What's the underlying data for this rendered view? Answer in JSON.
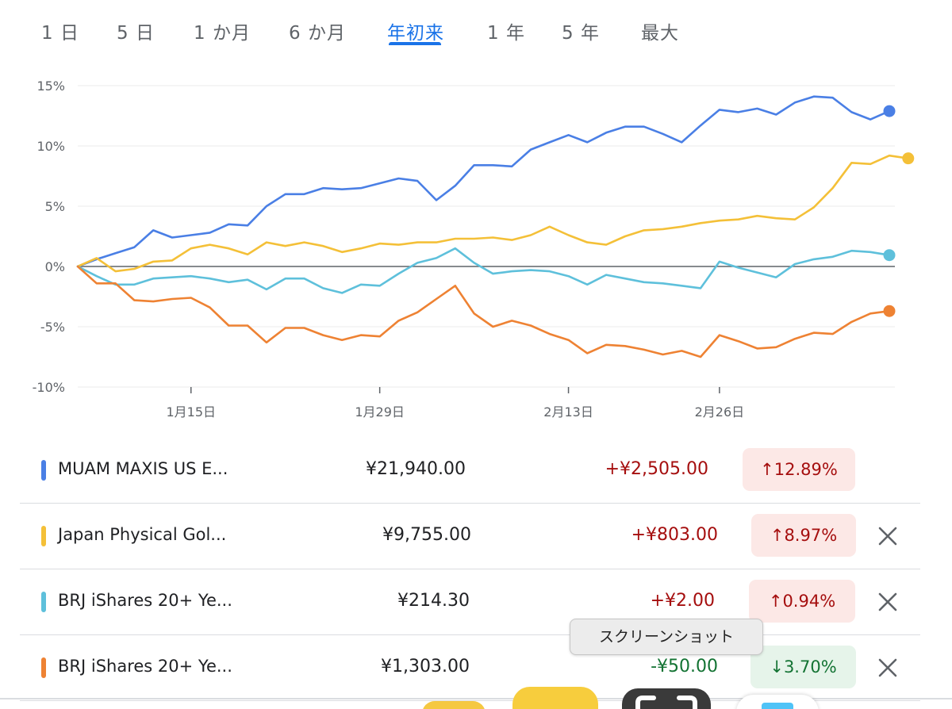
{
  "tabs": [
    {
      "label": "1 日",
      "active": false
    },
    {
      "label": "5 日",
      "active": false
    },
    {
      "label": "1 か月",
      "active": false
    },
    {
      "label": "6 か月",
      "active": false
    },
    {
      "label": "年初来",
      "active": true
    },
    {
      "label": "1 年",
      "active": false
    },
    {
      "label": "5 年",
      "active": false
    },
    {
      "label": "最大",
      "active": false
    }
  ],
  "chart_data": {
    "type": "line",
    "y_ticks": [
      "15%",
      "10%",
      "5%",
      "0%",
      "-5%",
      "-10%"
    ],
    "ylim": [
      -10,
      15
    ],
    "x_ticks": [
      {
        "label": "1月15日",
        "index": 6
      },
      {
        "label": "1月29日",
        "index": 16
      },
      {
        "label": "2月13日",
        "index": 26
      },
      {
        "label": "2月26日",
        "index": 34
      }
    ],
    "grid": true,
    "series": [
      {
        "name": "MUAM MAXIS US E...",
        "color": "#4a7fe5",
        "values": [
          0,
          0.6,
          1.1,
          1.6,
          3.0,
          2.4,
          2.6,
          2.8,
          3.5,
          3.4,
          5.0,
          6.0,
          6.0,
          6.5,
          6.4,
          6.5,
          6.9,
          7.3,
          7.1,
          5.5,
          6.7,
          8.4,
          8.4,
          8.3,
          9.7,
          10.3,
          10.9,
          10.3,
          11.1,
          11.6,
          11.6,
          11.0,
          10.3,
          11.7,
          13.0,
          12.8,
          13.1,
          12.6,
          13.6,
          14.1,
          14.0,
          12.8,
          12.2,
          12.89
        ]
      },
      {
        "name": "Japan Physical Gol...",
        "color": "#f4c038",
        "values": [
          0,
          0.7,
          -0.4,
          -0.2,
          0.4,
          0.5,
          1.5,
          1.8,
          1.5,
          1.0,
          2.0,
          1.7,
          2.0,
          1.7,
          1.2,
          1.5,
          1.9,
          1.8,
          2.0,
          2.0,
          2.3,
          2.3,
          2.4,
          2.2,
          2.6,
          3.3,
          2.6,
          2.0,
          1.8,
          2.5,
          3.0,
          3.1,
          3.3,
          3.6,
          3.8,
          3.9,
          4.2,
          4.0,
          3.9,
          4.9,
          6.5,
          8.6,
          8.5,
          9.2,
          8.97
        ]
      },
      {
        "name": "BRJ iShares 20+ Ye...",
        "color": "#5ec0db",
        "values": [
          0,
          -0.8,
          -1.5,
          -1.5,
          -1.0,
          -0.9,
          -0.8,
          -1.0,
          -1.3,
          -1.1,
          -1.9,
          -1.0,
          -1.0,
          -1.8,
          -2.2,
          -1.5,
          -1.6,
          -0.6,
          0.3,
          0.7,
          1.5,
          0.3,
          -0.6,
          -0.4,
          -0.3,
          -0.4,
          -0.8,
          -1.5,
          -0.7,
          -1.0,
          -1.3,
          -1.4,
          -1.6,
          -1.8,
          0.4,
          -0.1,
          -0.5,
          -0.9,
          0.2,
          0.6,
          0.8,
          1.3,
          1.2,
          0.94
        ]
      },
      {
        "name": "BRJ iShares 20+ Ye...",
        "color": "#ee8233",
        "values": [
          0,
          -1.4,
          -1.4,
          -2.8,
          -2.9,
          -2.7,
          -2.6,
          -3.4,
          -4.9,
          -4.9,
          -6.3,
          -5.1,
          -5.1,
          -5.7,
          -6.1,
          -5.7,
          -5.8,
          -4.5,
          -3.8,
          -2.7,
          -1.6,
          -3.9,
          -5.0,
          -4.5,
          -4.9,
          -5.6,
          -6.1,
          -7.2,
          -6.5,
          -6.6,
          -6.9,
          -7.3,
          -7.0,
          -7.5,
          -5.7,
          -6.2,
          -6.8,
          -6.7,
          -6.0,
          -5.5,
          -5.6,
          -4.6,
          -3.9,
          -3.7
        ]
      }
    ]
  },
  "rows": [
    {
      "name": "MUAM MAXIS US E...",
      "color": "#4a7fe5",
      "price": "¥21,940.00",
      "change": "+¥2,505.00",
      "percent": "12.89%",
      "direction": "up",
      "arrow": "↑",
      "removable": false
    },
    {
      "name": "Japan Physical Gol...",
      "color": "#f4c038",
      "price": "¥9,755.00",
      "change": "+¥803.00",
      "percent": "8.97%",
      "direction": "up",
      "arrow": "↑",
      "removable": true
    },
    {
      "name": "BRJ iShares 20+ Ye...",
      "color": "#5ec0db",
      "price": "¥214.30",
      "change": "+¥2.00",
      "percent": "0.94%",
      "direction": "up",
      "arrow": "↑",
      "removable": true
    },
    {
      "name": "BRJ iShares 20+ Ye...",
      "color": "#ee8233",
      "price": "¥1,303.00",
      "change": "-¥50.00",
      "percent": "3.70%",
      "direction": "down",
      "arrow": "↓",
      "removable": true
    }
  ],
  "tooltip": {
    "text": "スクリーンショット"
  },
  "icons": {
    "remove": "close-icon",
    "screenshot": "screenshot-icon"
  }
}
